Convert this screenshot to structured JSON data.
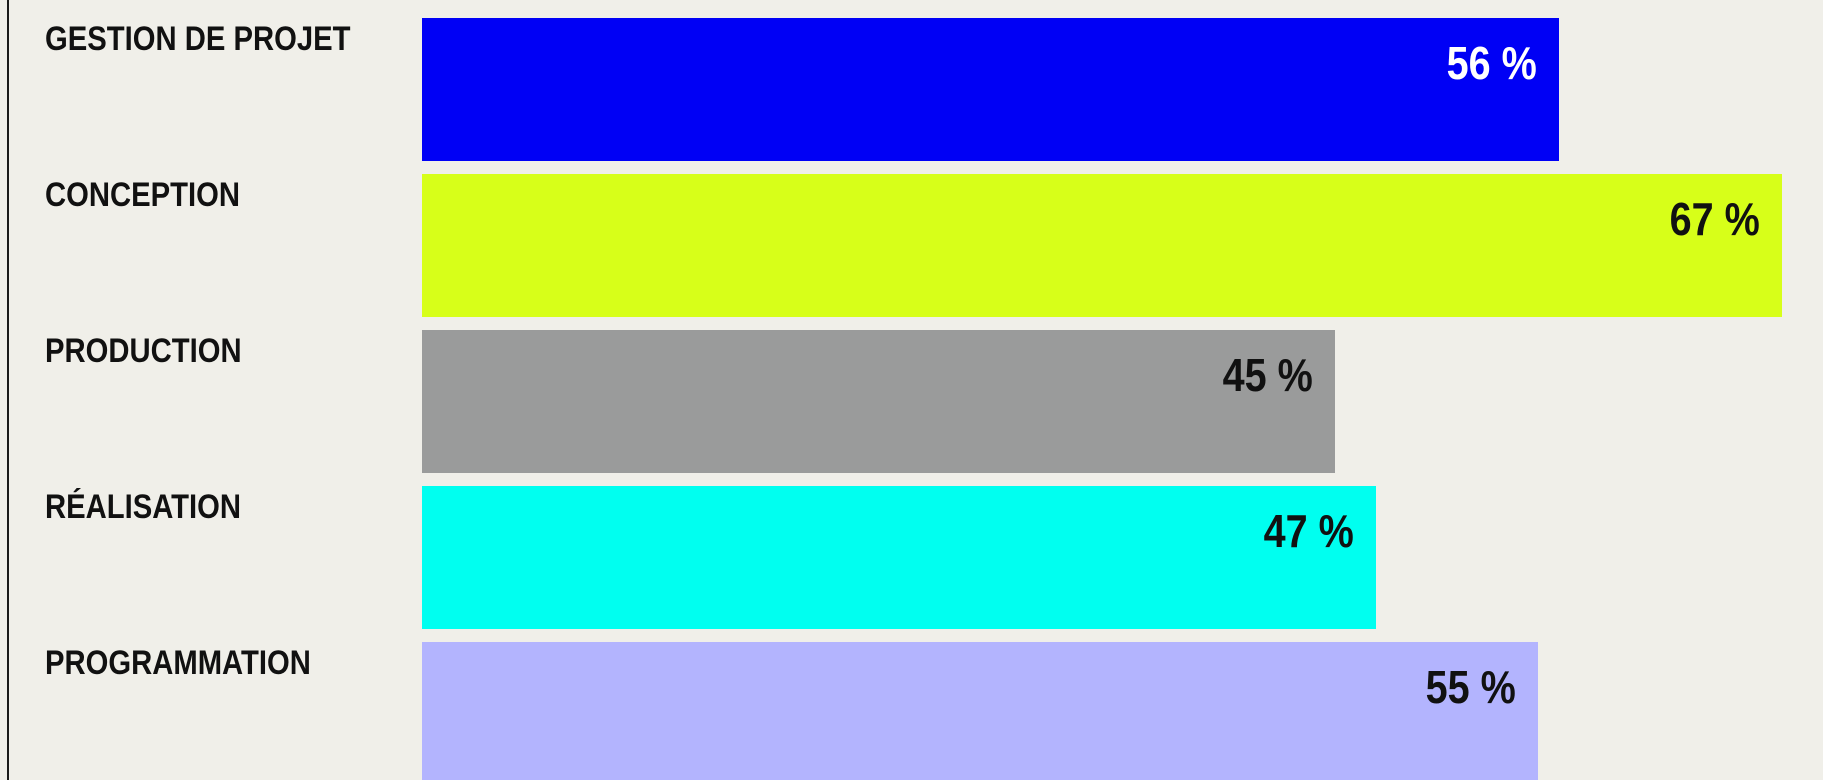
{
  "chart_data": {
    "type": "bar",
    "orientation": "horizontal",
    "categories": [
      "GESTION DE PROJET",
      "CONCEPTION",
      "PRODUCTION",
      "RÉALISATION",
      "PROGRAMMATION"
    ],
    "values": [
      56,
      67,
      45,
      47,
      55
    ],
    "value_labels": [
      "56 %",
      "67 %",
      "45 %",
      "47 %",
      "55 %"
    ],
    "colors": [
      "#0000f5",
      "#d7ff19",
      "#9a9b9b",
      "#00fff0",
      "#b3b4fe"
    ],
    "label_colors": [
      "#ffffff",
      "#111111",
      "#111111",
      "#111111",
      "#111111"
    ],
    "xlim": [
      0,
      67
    ],
    "grid": false,
    "legend": "none"
  }
}
